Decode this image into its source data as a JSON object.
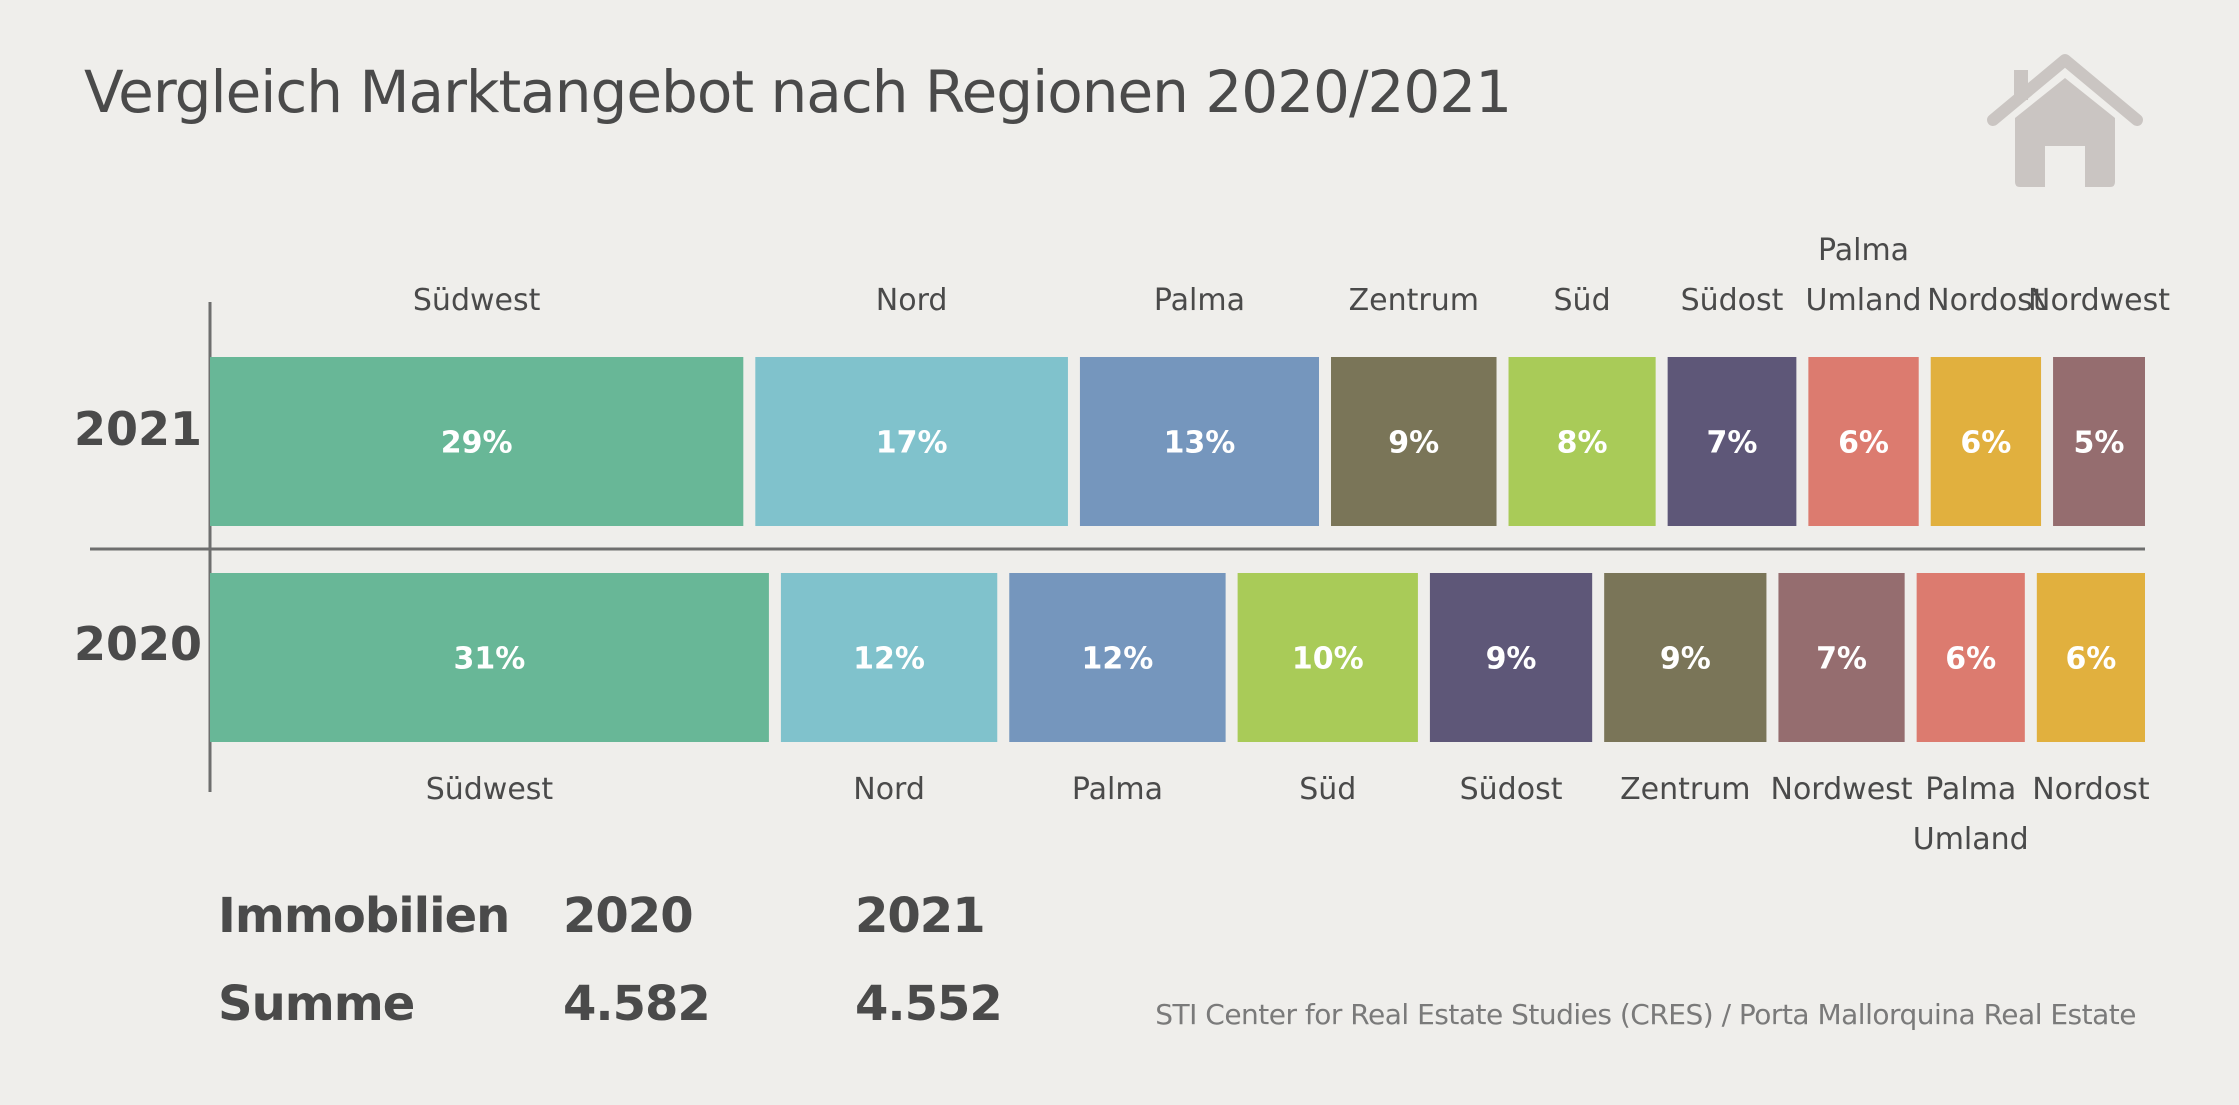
{
  "title": "Vergleich Marktangebot nach Regionen 2020/2021",
  "icon": "house-icon",
  "colors": {
    "Südwest": "#68b797",
    "Nord": "#80c2cc",
    "Palma": "#7596bd",
    "Zentrum": "#7a7558",
    "Süd": "#a9cb58",
    "Südost": "#5e5778",
    "Palma Umland": "#dc7b6f",
    "Nordost": "#e1b03e",
    "Nordwest": "#956d6f"
  },
  "chart_data": {
    "type": "bar",
    "orientation": "horizontal-stacked-100",
    "title": "Vergleich Marktangebot nach Regionen 2020/2021",
    "series": [
      {
        "name": "2021",
        "regions": [
          "Südwest",
          "Nord",
          "Palma",
          "Zentrum",
          "Süd",
          "Südost",
          "Palma Umland",
          "Nordost",
          "Nordwest"
        ],
        "values": [
          29,
          17,
          13,
          9,
          8,
          7,
          6,
          6,
          5
        ],
        "labels": [
          "29%",
          "17%",
          "13%",
          "9%",
          "8%",
          "7%",
          "6%",
          "6%",
          "5%"
        ]
      },
      {
        "name": "2020",
        "regions": [
          "Südwest",
          "Nord",
          "Palma",
          "Süd",
          "Südost",
          "Zentrum",
          "Nordwest",
          "Palma Umland",
          "Nordost"
        ],
        "values": [
          31,
          12,
          12,
          10,
          9,
          9,
          7,
          6,
          6
        ],
        "labels": [
          "31%",
          "12%",
          "12%",
          "10%",
          "9%",
          "9%",
          "7%",
          "6%",
          "6%"
        ]
      }
    ],
    "legend": "labels above (2021) and below (2020) each segment"
  },
  "summary": {
    "row1": {
      "label": "Immobilien",
      "v2020": "2020",
      "v2021": "2021"
    },
    "row2": {
      "label": "Summe",
      "v2020": "4.582",
      "v2021": "4.552"
    }
  },
  "source": "STI Center for Real Estate Studies (CRES) / Porta Mallorquina Real Estate"
}
